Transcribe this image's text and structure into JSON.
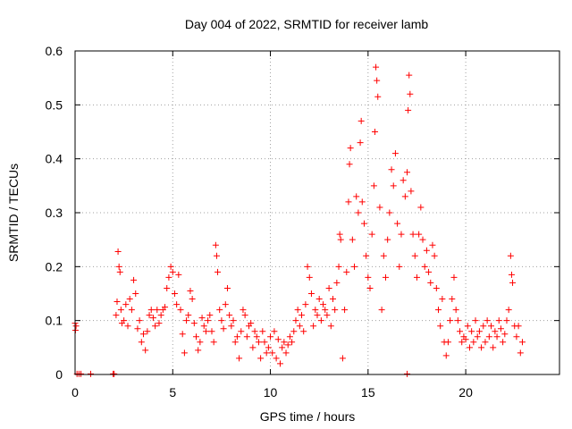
{
  "chart_data": {
    "type": "scatter",
    "title": "Day 004 of 2022, SRMTID for receiver lamb",
    "xlabel": "GPS time / hours",
    "ylabel": "SRMTID / TECUs",
    "xlim": [
      0,
      24.8
    ],
    "ylim": [
      0,
      0.6
    ],
    "xticks": [
      0,
      5,
      10,
      15,
      20
    ],
    "xtick_labels": [
      "0",
      "5",
      "10",
      "15",
      "20"
    ],
    "yticks": [
      0,
      0.1,
      0.2,
      0.3,
      0.4,
      0.5,
      0.6
    ],
    "ytick_labels": [
      "0",
      "0.1",
      "0.2",
      "0.3",
      "0.4",
      "0.5",
      "0.6"
    ],
    "grid": true,
    "marker": "plus",
    "color": "#ff0000",
    "series": [
      {
        "name": "SRMTID",
        "points": [
          [
            0.0,
            0.095
          ],
          [
            0.02,
            0.082
          ],
          [
            0.05,
            0.09
          ],
          [
            0.1,
            0.001
          ],
          [
            0.2,
            0.001
          ],
          [
            0.3,
            0.001
          ],
          [
            0.8,
            0.001
          ],
          [
            1.95,
            0.001
          ],
          [
            2.0,
            0.001
          ],
          [
            17.0,
            0.001
          ],
          [
            2.1,
            0.11
          ],
          [
            2.15,
            0.135
          ],
          [
            2.2,
            0.228
          ],
          [
            2.25,
            0.2
          ],
          [
            2.3,
            0.19
          ],
          [
            2.35,
            0.12
          ],
          [
            2.4,
            0.095
          ],
          [
            2.5,
            0.1
          ],
          [
            2.6,
            0.13
          ],
          [
            2.7,
            0.09
          ],
          [
            2.8,
            0.14
          ],
          [
            2.9,
            0.12
          ],
          [
            3.0,
            0.175
          ],
          [
            3.1,
            0.15
          ],
          [
            3.2,
            0.085
          ],
          [
            3.3,
            0.1
          ],
          [
            3.4,
            0.06
          ],
          [
            3.5,
            0.075
          ],
          [
            3.6,
            0.045
          ],
          [
            3.7,
            0.08
          ],
          [
            3.8,
            0.11
          ],
          [
            3.9,
            0.12
          ],
          [
            4.0,
            0.105
          ],
          [
            4.1,
            0.09
          ],
          [
            4.2,
            0.12
          ],
          [
            4.3,
            0.095
          ],
          [
            4.4,
            0.11
          ],
          [
            4.5,
            0.12
          ],
          [
            4.6,
            0.125
          ],
          [
            4.7,
            0.16
          ],
          [
            4.8,
            0.18
          ],
          [
            4.9,
            0.2
          ],
          [
            5.0,
            0.19
          ],
          [
            5.1,
            0.15
          ],
          [
            5.2,
            0.13
          ],
          [
            5.3,
            0.185
          ],
          [
            5.4,
            0.12
          ],
          [
            5.5,
            0.075
          ],
          [
            5.6,
            0.04
          ],
          [
            5.7,
            0.1
          ],
          [
            5.8,
            0.11
          ],
          [
            5.9,
            0.155
          ],
          [
            6.0,
            0.14
          ],
          [
            6.1,
            0.095
          ],
          [
            6.2,
            0.07
          ],
          [
            6.3,
            0.045
          ],
          [
            6.4,
            0.06
          ],
          [
            6.5,
            0.105
          ],
          [
            6.6,
            0.09
          ],
          [
            6.7,
            0.08
          ],
          [
            6.8,
            0.1
          ],
          [
            6.9,
            0.11
          ],
          [
            7.0,
            0.08
          ],
          [
            7.1,
            0.06
          ],
          [
            7.2,
            0.24
          ],
          [
            7.25,
            0.22
          ],
          [
            7.3,
            0.19
          ],
          [
            7.4,
            0.12
          ],
          [
            7.5,
            0.1
          ],
          [
            7.6,
            0.085
          ],
          [
            7.7,
            0.13
          ],
          [
            7.8,
            0.16
          ],
          [
            7.9,
            0.11
          ],
          [
            8.0,
            0.09
          ],
          [
            8.1,
            0.1
          ],
          [
            8.2,
            0.06
          ],
          [
            8.3,
            0.07
          ],
          [
            8.4,
            0.03
          ],
          [
            8.5,
            0.08
          ],
          [
            8.6,
            0.12
          ],
          [
            8.7,
            0.11
          ],
          [
            8.8,
            0.07
          ],
          [
            8.9,
            0.09
          ],
          [
            9.0,
            0.095
          ],
          [
            9.1,
            0.05
          ],
          [
            9.2,
            0.08
          ],
          [
            9.3,
            0.07
          ],
          [
            9.4,
            0.06
          ],
          [
            9.5,
            0.03
          ],
          [
            9.6,
            0.08
          ],
          [
            9.7,
            0.06
          ],
          [
            9.8,
            0.04
          ],
          [
            9.9,
            0.05
          ],
          [
            10.0,
            0.07
          ],
          [
            10.1,
            0.04
          ],
          [
            10.2,
            0.08
          ],
          [
            10.3,
            0.03
          ],
          [
            10.4,
            0.065
          ],
          [
            10.5,
            0.02
          ],
          [
            10.6,
            0.05
          ],
          [
            10.7,
            0.06
          ],
          [
            10.8,
            0.04
          ],
          [
            10.9,
            0.055
          ],
          [
            11.0,
            0.07
          ],
          [
            11.1,
            0.06
          ],
          [
            11.2,
            0.08
          ],
          [
            11.3,
            0.1
          ],
          [
            11.4,
            0.12
          ],
          [
            11.5,
            0.09
          ],
          [
            11.6,
            0.11
          ],
          [
            11.7,
            0.08
          ],
          [
            11.8,
            0.13
          ],
          [
            11.9,
            0.2
          ],
          [
            12.0,
            0.18
          ],
          [
            12.1,
            0.15
          ],
          [
            12.2,
            0.09
          ],
          [
            12.3,
            0.12
          ],
          [
            12.4,
            0.11
          ],
          [
            12.5,
            0.14
          ],
          [
            12.6,
            0.1
          ],
          [
            12.7,
            0.13
          ],
          [
            12.8,
            0.12
          ],
          [
            12.9,
            0.11
          ],
          [
            13.0,
            0.16
          ],
          [
            13.1,
            0.09
          ],
          [
            13.2,
            0.14
          ],
          [
            13.3,
            0.12
          ],
          [
            13.4,
            0.17
          ],
          [
            13.5,
            0.2
          ],
          [
            13.55,
            0.26
          ],
          [
            13.6,
            0.25
          ],
          [
            13.7,
            0.03
          ],
          [
            13.8,
            0.12
          ],
          [
            13.9,
            0.19
          ],
          [
            14.0,
            0.32
          ],
          [
            14.05,
            0.39
          ],
          [
            14.1,
            0.42
          ],
          [
            14.2,
            0.25
          ],
          [
            14.3,
            0.2
          ],
          [
            14.4,
            0.33
          ],
          [
            14.5,
            0.3
          ],
          [
            14.6,
            0.43
          ],
          [
            14.65,
            0.47
          ],
          [
            14.7,
            0.32
          ],
          [
            14.8,
            0.28
          ],
          [
            14.9,
            0.22
          ],
          [
            15.0,
            0.18
          ],
          [
            15.1,
            0.16
          ],
          [
            15.2,
            0.26
          ],
          [
            15.3,
            0.35
          ],
          [
            15.35,
            0.45
          ],
          [
            15.4,
            0.57
          ],
          [
            15.45,
            0.545
          ],
          [
            15.5,
            0.515
          ],
          [
            15.6,
            0.31
          ],
          [
            15.7,
            0.12
          ],
          [
            15.8,
            0.22
          ],
          [
            15.9,
            0.18
          ],
          [
            16.0,
            0.25
          ],
          [
            16.1,
            0.3
          ],
          [
            16.2,
            0.38
          ],
          [
            16.3,
            0.35
          ],
          [
            16.4,
            0.41
          ],
          [
            16.5,
            0.28
          ],
          [
            16.6,
            0.2
          ],
          [
            16.7,
            0.26
          ],
          [
            16.8,
            0.36
          ],
          [
            16.9,
            0.33
          ],
          [
            17.0,
            0.375
          ],
          [
            17.05,
            0.49
          ],
          [
            17.1,
            0.555
          ],
          [
            17.15,
            0.52
          ],
          [
            17.2,
            0.34
          ],
          [
            17.3,
            0.26
          ],
          [
            17.4,
            0.22
          ],
          [
            17.5,
            0.18
          ],
          [
            17.6,
            0.26
          ],
          [
            17.7,
            0.31
          ],
          [
            17.8,
            0.25
          ],
          [
            17.9,
            0.2
          ],
          [
            18.0,
            0.23
          ],
          [
            18.1,
            0.19
          ],
          [
            18.2,
            0.17
          ],
          [
            18.3,
            0.24
          ],
          [
            18.4,
            0.22
          ],
          [
            18.5,
            0.16
          ],
          [
            18.6,
            0.12
          ],
          [
            18.7,
            0.09
          ],
          [
            18.8,
            0.14
          ],
          [
            18.9,
            0.06
          ],
          [
            19.0,
            0.035
          ],
          [
            19.1,
            0.06
          ],
          [
            19.2,
            0.1
          ],
          [
            19.3,
            0.14
          ],
          [
            19.4,
            0.18
          ],
          [
            19.5,
            0.12
          ],
          [
            19.6,
            0.1
          ],
          [
            19.7,
            0.08
          ],
          [
            19.8,
            0.06
          ],
          [
            19.9,
            0.07
          ],
          [
            20.0,
            0.065
          ],
          [
            20.1,
            0.09
          ],
          [
            20.2,
            0.05
          ],
          [
            20.3,
            0.08
          ],
          [
            20.4,
            0.06
          ],
          [
            20.5,
            0.1
          ],
          [
            20.6,
            0.07
          ],
          [
            20.7,
            0.08
          ],
          [
            20.8,
            0.05
          ],
          [
            20.9,
            0.09
          ],
          [
            21.0,
            0.06
          ],
          [
            21.1,
            0.1
          ],
          [
            21.2,
            0.07
          ],
          [
            21.3,
            0.09
          ],
          [
            21.4,
            0.05
          ],
          [
            21.5,
            0.08
          ],
          [
            21.6,
            0.07
          ],
          [
            21.7,
            0.1
          ],
          [
            21.8,
            0.085
          ],
          [
            21.9,
            0.06
          ],
          [
            22.0,
            0.075
          ],
          [
            22.1,
            0.1
          ],
          [
            22.2,
            0.12
          ],
          [
            22.3,
            0.22
          ],
          [
            22.35,
            0.185
          ],
          [
            22.4,
            0.17
          ],
          [
            22.5,
            0.09
          ],
          [
            22.6,
            0.07
          ],
          [
            22.7,
            0.09
          ],
          [
            22.8,
            0.04
          ],
          [
            22.9,
            0.06
          ]
        ]
      }
    ]
  }
}
